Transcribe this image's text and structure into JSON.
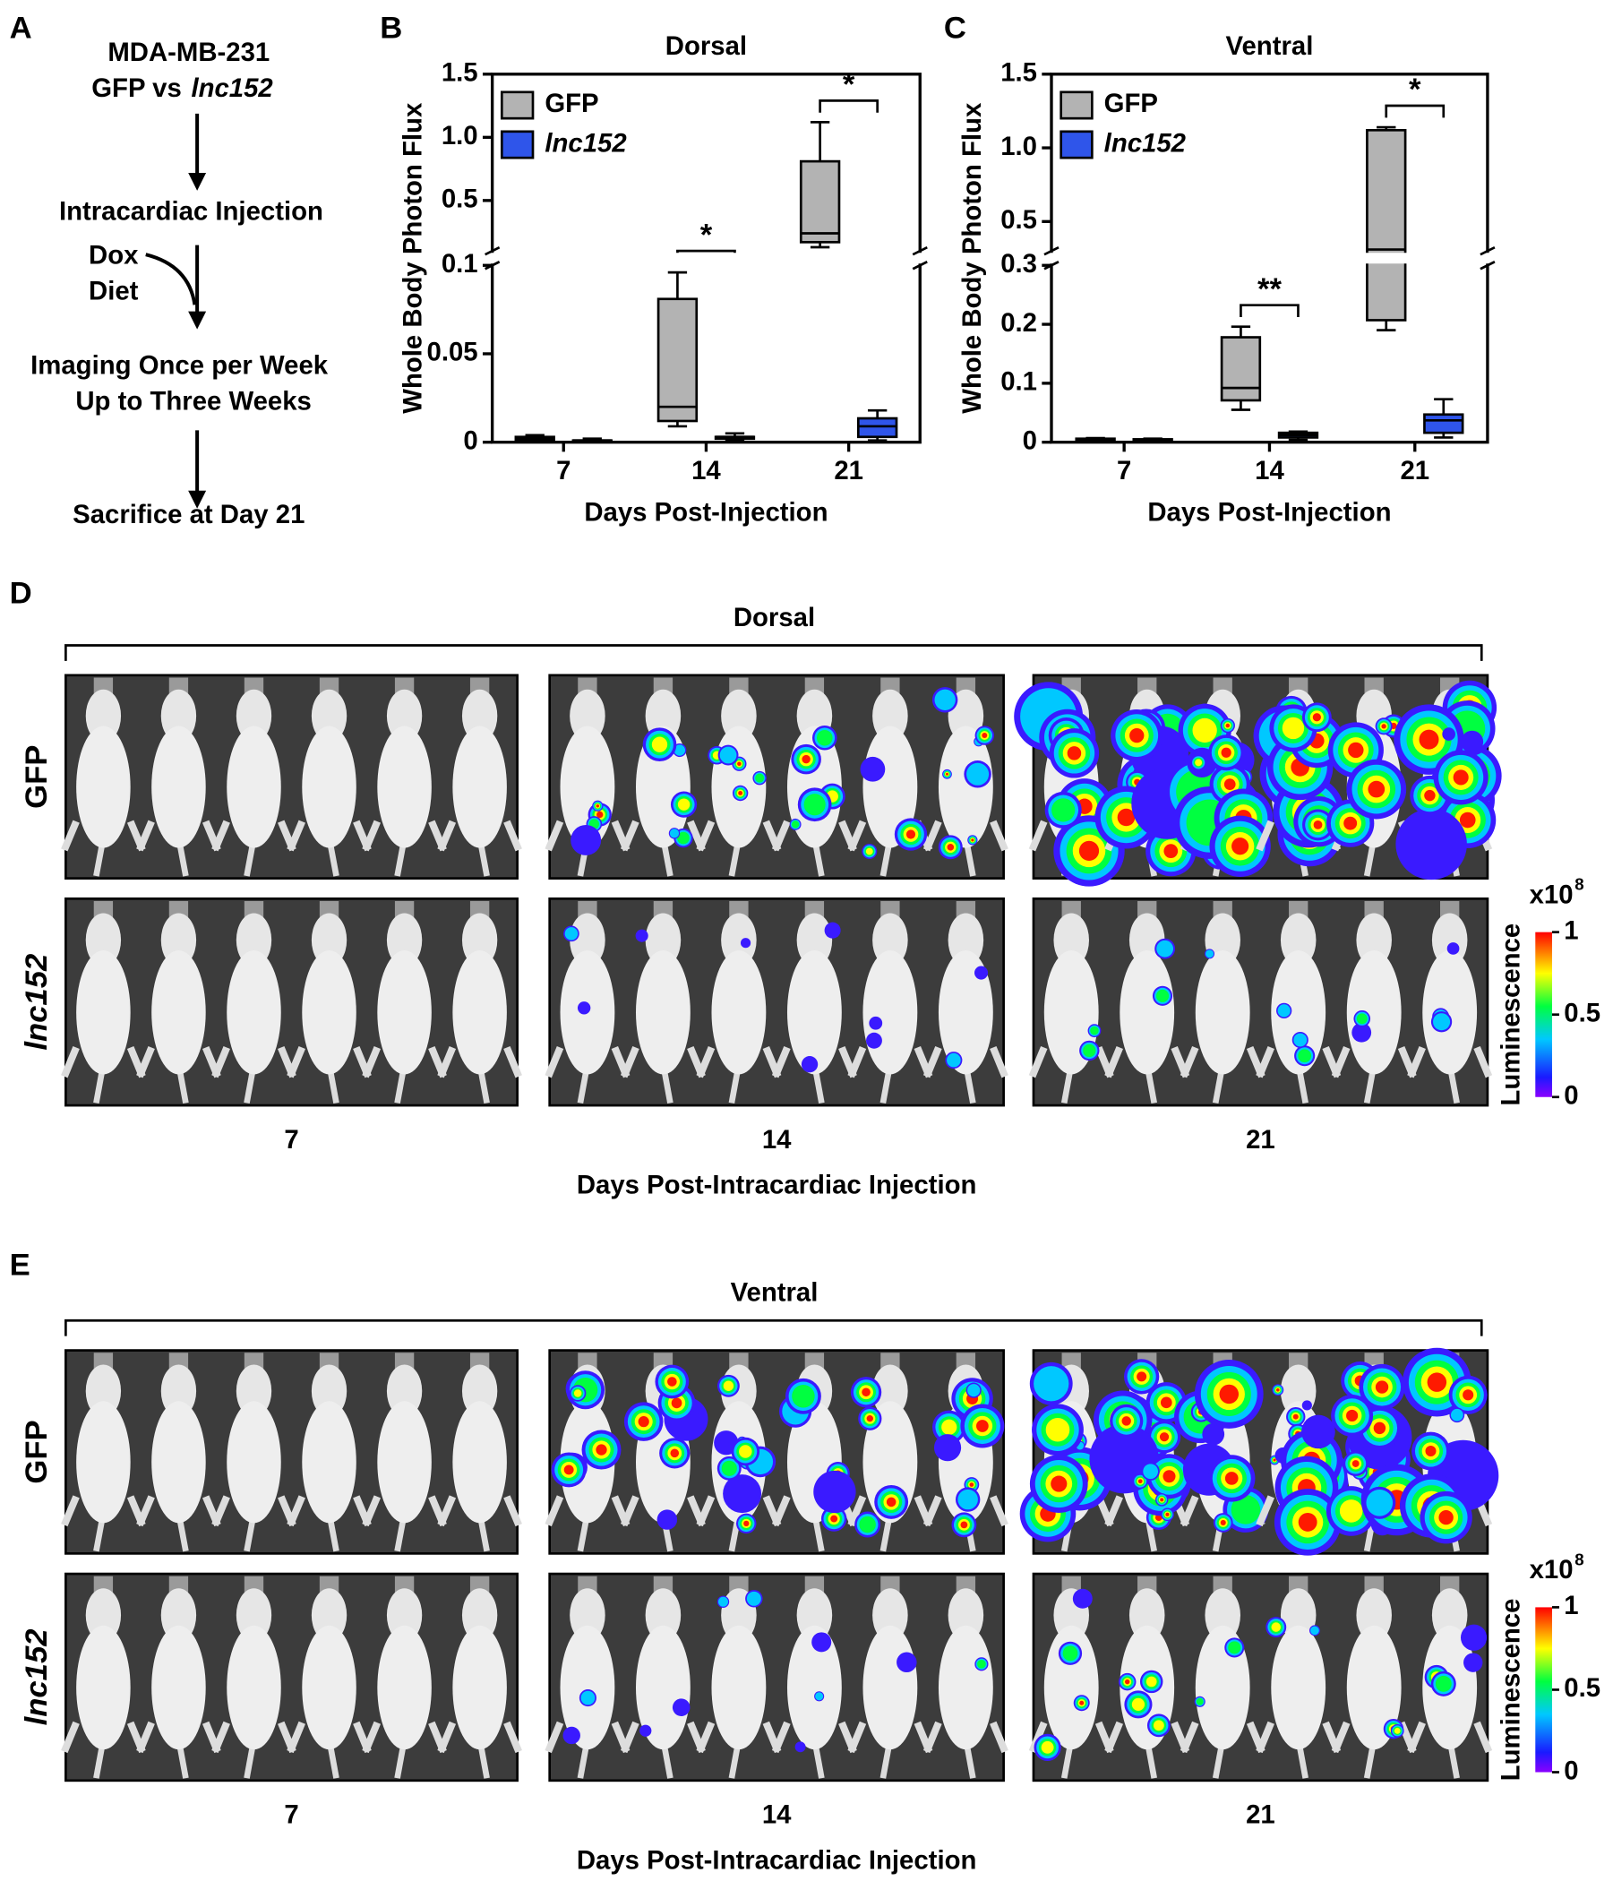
{
  "panel_labels": [
    "A",
    "B",
    "C",
    "D",
    "E"
  ],
  "flowchart": {
    "cell_line": "MDA-MB-231",
    "comparison": "GFP vs",
    "comparison_italic": "lnc152",
    "injection": "Intracardiac Injection",
    "treatment": [
      "Dox",
      "Diet"
    ],
    "imaging": [
      "Imaging Once per Week",
      "Up to Three Weeks"
    ],
    "endpoint": "Sacrifice at Day 21"
  },
  "chart_data": [
    {
      "type": "box",
      "title": "Dorsal",
      "y_label": "Whole Body Photon Flux",
      "x_label": "Days Post-Injection",
      "categories": [
        "7",
        "14",
        "21"
      ],
      "ylim": [
        0,
        1.5
      ],
      "ybreak": 0.1,
      "yticks": [
        0,
        0.05,
        0.1,
        0.5,
        {
          "value": 1.0,
          "label": "1.0"
        },
        1.5
      ],
      "legend": "upper-left",
      "series": [
        {
          "name": "GFP",
          "color": "#b3b3b3",
          "italic": false,
          "min": [
            0,
            0.009,
            0.13
          ],
          "q1": [
            0.001,
            0.012,
            0.17
          ],
          "median": [
            0.002,
            0.02,
            0.24
          ],
          "q3": [
            0.003,
            0.081,
            0.81
          ],
          "max": [
            0.004,
            0.096,
            1.12
          ]
        },
        {
          "name": "lnc152",
          "color": "#2f55ea",
          "italic": true,
          "min": [
            0,
            0.001,
            0.001
          ],
          "q1": [
            0.0005,
            0.002,
            0.003
          ],
          "median": [
            0.001,
            0.003,
            0.009
          ],
          "q3": [
            0.001,
            0.003,
            0.0135
          ],
          "max": [
            0.002,
            0.005,
            0.018
          ]
        }
      ],
      "significance": [
        null,
        "*",
        "*"
      ]
    },
    {
      "type": "box",
      "title": "Ventral",
      "y_label": "Whole Body Photon Flux",
      "x_label": "Days Post-Injection",
      "categories": [
        "7",
        "14",
        "21"
      ],
      "ylim": [
        0,
        1.5
      ],
      "ybreak": 0.3,
      "yticks": [
        0,
        0.1,
        0.2,
        0.3,
        0.5,
        {
          "value": 1.0,
          "label": "1.0"
        },
        1.5
      ],
      "legend": "upper-left",
      "series": [
        {
          "name": "GFP",
          "color": "#b3b3b3",
          "italic": false,
          "min": [
            0.002,
            0.055,
            0.19
          ],
          "q1": [
            0.004,
            0.071,
            0.207
          ],
          "median": [
            0.005,
            0.092,
            0.31
          ],
          "q3": [
            0.006,
            0.178,
            1.12
          ],
          "max": [
            0.007,
            0.196,
            1.14
          ]
        },
        {
          "name": "lnc152",
          "color": "#2f55ea",
          "italic": true,
          "min": [
            0.002,
            0.004,
            0.008
          ],
          "q1": [
            0.003,
            0.008,
            0.016
          ],
          "median": [
            0.004,
            0.012,
            0.037
          ],
          "q3": [
            0.005,
            0.016,
            0.047
          ],
          "max": [
            0.006,
            0.018,
            0.073
          ]
        }
      ],
      "significance": [
        null,
        "**",
        "*"
      ]
    }
  ],
  "imaging": [
    {
      "title": "Dorsal",
      "rows": [
        "GFP",
        "lnc152"
      ],
      "columns": [
        "7",
        "14",
        "21"
      ],
      "x_label": "Days Post-Intracardiac Injection",
      "colorbar": {
        "multiplier": "x10",
        "exponent": "8",
        "label": "Luminescence",
        "lim": [
          0,
          1
        ],
        "ticks": [
          0,
          0.5,
          1
        ]
      }
    },
    {
      "title": "Ventral",
      "rows": [
        "GFP",
        "lnc152"
      ],
      "columns": [
        "7",
        "14",
        "21"
      ],
      "x_label": "Days Post-Intracardiac Injection",
      "colorbar": {
        "multiplier": "x10",
        "exponent": "8",
        "label": "Luminescence",
        "lim": [
          0,
          1
        ],
        "ticks": [
          0,
          0.5,
          1
        ]
      }
    }
  ]
}
